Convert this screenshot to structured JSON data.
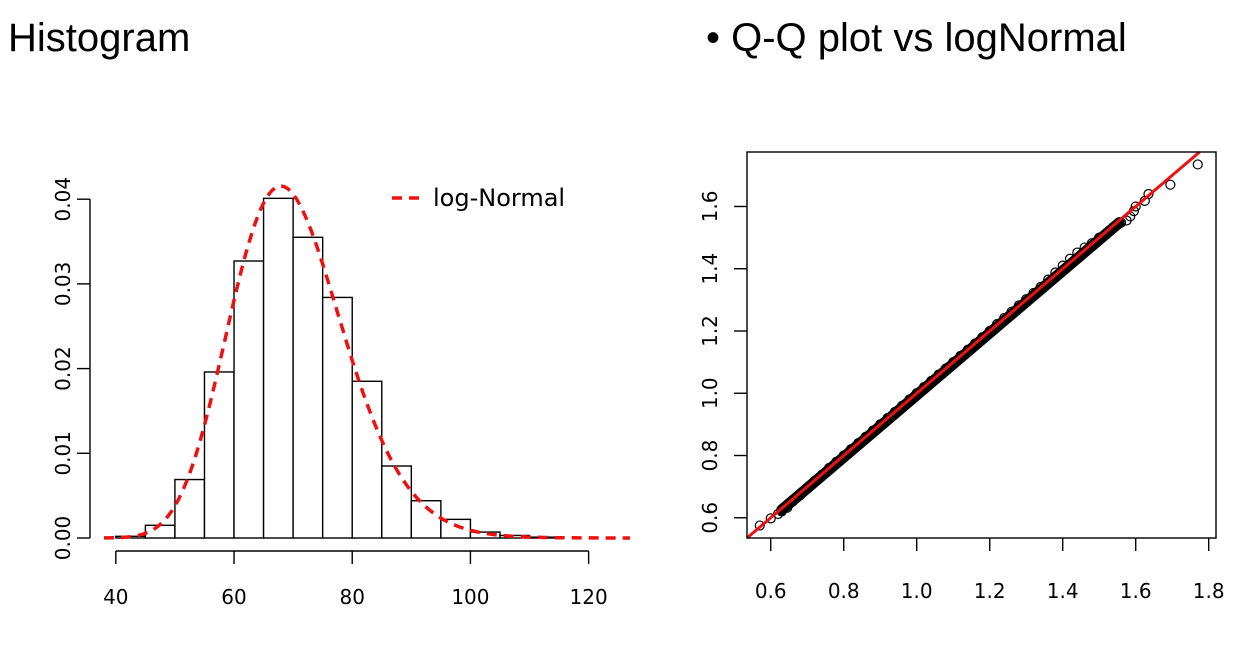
{
  "headings": {
    "left": "Histogram",
    "right": "• Q-Q plot vs logNormal"
  },
  "chart_data": [
    {
      "type": "bar",
      "title": "",
      "xlabel": "",
      "ylabel": "",
      "bins": [
        {
          "from": 40,
          "to": 45,
          "value": 0.0002
        },
        {
          "from": 45,
          "to": 50,
          "value": 0.0015
        },
        {
          "from": 50,
          "to": 55,
          "value": 0.0069
        },
        {
          "from": 55,
          "to": 60,
          "value": 0.0196
        },
        {
          "from": 60,
          "to": 65,
          "value": 0.0327
        },
        {
          "from": 65,
          "to": 70,
          "value": 0.0401
        },
        {
          "from": 70,
          "to": 75,
          "value": 0.0355
        },
        {
          "from": 75,
          "to": 80,
          "value": 0.0284
        },
        {
          "from": 80,
          "to": 85,
          "value": 0.0185
        },
        {
          "from": 85,
          "to": 90,
          "value": 0.0085
        },
        {
          "from": 90,
          "to": 95,
          "value": 0.0044
        },
        {
          "from": 95,
          "to": 100,
          "value": 0.0022
        },
        {
          "from": 100,
          "to": 105,
          "value": 0.0007
        },
        {
          "from": 105,
          "to": 110,
          "value": 0.0003
        },
        {
          "from": 110,
          "to": 115,
          "value": 0.0001
        }
      ],
      "curve": {
        "name": "log-Normal",
        "color": "#ee1111",
        "style": "dashed",
        "meanlog": 4.238,
        "sdlog": 0.14,
        "x_range": [
          38,
          127
        ]
      },
      "xlim": [
        38,
        127
      ],
      "ylim": [
        0,
        0.0425
      ],
      "x_ticks": [
        "40",
        "60",
        "80",
        "100",
        "120"
      ],
      "y_ticks": [
        "0.00",
        "0.01",
        "0.02",
        "0.03",
        "0.04"
      ],
      "legend_position": "top-right",
      "grid": false
    },
    {
      "type": "scatter",
      "title": "",
      "xlabel": "",
      "ylabel": "",
      "points": [
        [
          0.57,
          0.575
        ],
        [
          0.6,
          0.598
        ],
        [
          0.62,
          0.612
        ],
        [
          0.63,
          0.62
        ],
        [
          0.645,
          0.632
        ],
        [
          0.66,
          0.652
        ],
        [
          0.68,
          0.672
        ],
        [
          0.7,
          0.695
        ],
        [
          0.72,
          0.718
        ],
        [
          0.74,
          0.738
        ],
        [
          0.76,
          0.76
        ],
        [
          0.78,
          0.78
        ],
        [
          0.8,
          0.8
        ],
        [
          0.82,
          0.82
        ],
        [
          0.84,
          0.84
        ],
        [
          0.86,
          0.86
        ],
        [
          0.88,
          0.88
        ],
        [
          0.9,
          0.9
        ],
        [
          0.92,
          0.92
        ],
        [
          0.94,
          0.94
        ],
        [
          0.96,
          0.96
        ],
        [
          0.98,
          0.98
        ],
        [
          1.0,
          1.0
        ],
        [
          1.02,
          1.02
        ],
        [
          1.04,
          1.04
        ],
        [
          1.06,
          1.06
        ],
        [
          1.08,
          1.08
        ],
        [
          1.1,
          1.1
        ],
        [
          1.12,
          1.12
        ],
        [
          1.14,
          1.14
        ],
        [
          1.16,
          1.16
        ],
        [
          1.18,
          1.18
        ],
        [
          1.2,
          1.2
        ],
        [
          1.22,
          1.222
        ],
        [
          1.24,
          1.242
        ],
        [
          1.26,
          1.262
        ],
        [
          1.28,
          1.282
        ],
        [
          1.3,
          1.302
        ],
        [
          1.32,
          1.322
        ],
        [
          1.34,
          1.342
        ],
        [
          1.36,
          1.365
        ],
        [
          1.38,
          1.388
        ],
        [
          1.4,
          1.41
        ],
        [
          1.42,
          1.432
        ],
        [
          1.44,
          1.452
        ],
        [
          1.46,
          1.468
        ],
        [
          1.48,
          1.482
        ],
        [
          1.5,
          1.5
        ],
        [
          1.52,
          1.515
        ],
        [
          1.54,
          1.532
        ],
        [
          1.56,
          1.548
        ],
        [
          1.575,
          1.555
        ],
        [
          1.585,
          1.568
        ],
        [
          1.595,
          1.585
        ],
        [
          1.6,
          1.6
        ],
        [
          1.625,
          1.618
        ],
        [
          1.635,
          1.64
        ],
        [
          1.695,
          1.67
        ],
        [
          1.77,
          1.735
        ]
      ],
      "reference_line": {
        "intercept": 0,
        "slope": 1,
        "color": "#ee1111"
      },
      "xlim": [
        0.535,
        1.82
      ],
      "ylim": [
        0.535,
        1.775
      ],
      "x_ticks": [
        "0.6",
        "0.8",
        "1.0",
        "1.2",
        "1.4",
        "1.6",
        "1.8"
      ],
      "y_ticks": [
        "0.6",
        "0.8",
        "1.0",
        "1.2",
        "1.4",
        "1.6"
      ],
      "grid": false
    }
  ]
}
